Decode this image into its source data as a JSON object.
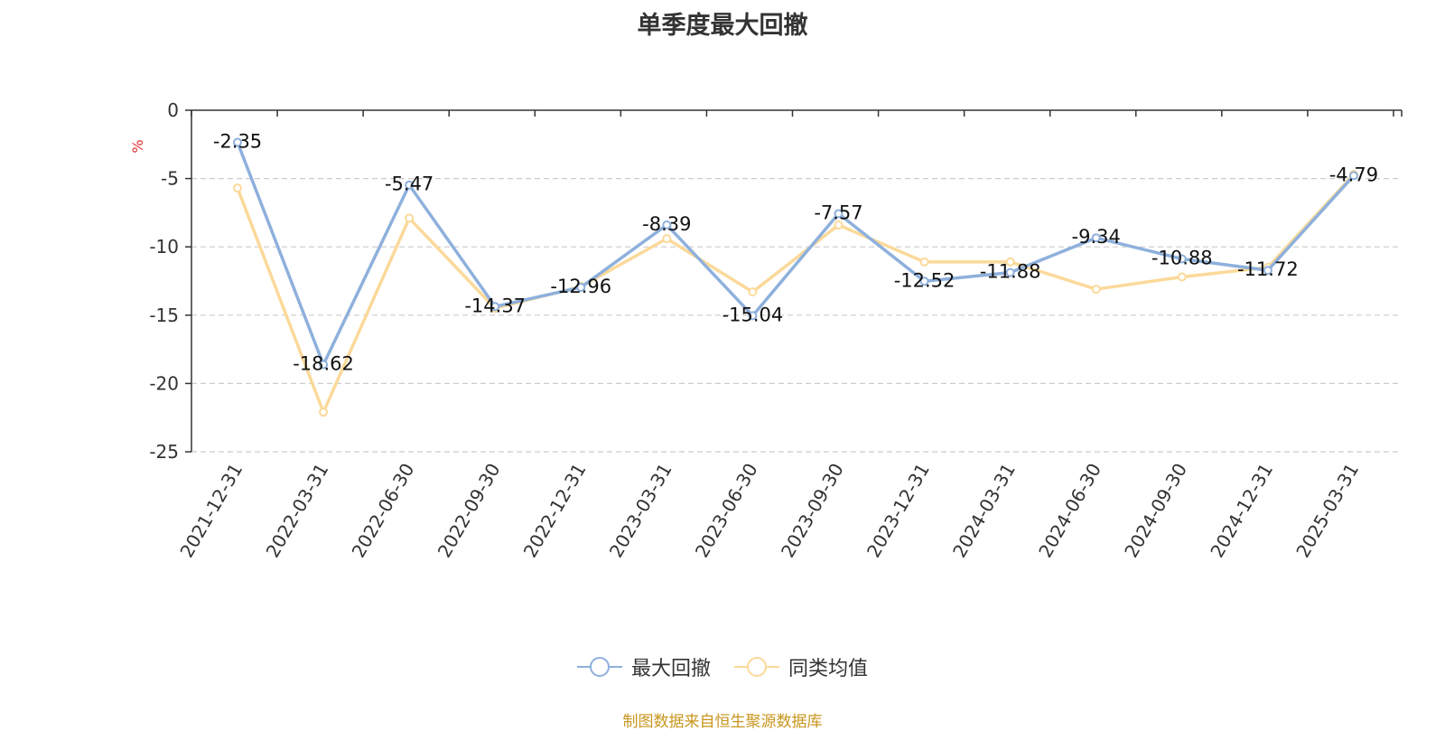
{
  "title": "单季度最大回撤",
  "chart_data": {
    "type": "line",
    "title": "单季度最大回撤",
    "ylabel": "%",
    "xlabel": "",
    "categories": [
      "2021-12-31",
      "2022-03-31",
      "2022-06-30",
      "2022-09-30",
      "2022-12-31",
      "2023-03-31",
      "2023-06-30",
      "2023-09-30",
      "2023-12-31",
      "2024-03-31",
      "2024-06-30",
      "2024-09-30",
      "2024-12-31",
      "2025-03-31"
    ],
    "ylim": [
      -25,
      0
    ],
    "yticks": [
      0,
      -5,
      -10,
      -15,
      -20,
      -25
    ],
    "ytick_labels": [
      "0",
      "-5",
      "-10",
      "-15",
      "-20",
      "-25"
    ],
    "grid": "horizontal dashed",
    "legend_position": "bottom",
    "series": [
      {
        "name": "最大回撤",
        "color": "#8eb0dc",
        "values": [
          -2.35,
          -18.62,
          -5.47,
          -14.37,
          -12.96,
          -8.39,
          -15.04,
          -7.57,
          -12.52,
          -11.88,
          -9.34,
          -10.88,
          -11.72,
          -4.79
        ],
        "labels": [
          "-2.35",
          "-18.62",
          "-5.47",
          "-14.37",
          "-12.96",
          "-8.39",
          "-15.04",
          "-7.57",
          "-12.52",
          "-11.88",
          "-9.34",
          "-10.88",
          "-11.72",
          "-4.79"
        ]
      },
      {
        "name": "同类均值",
        "color": "#fbd99a",
        "values": [
          -5.7,
          -22.1,
          -7.9,
          -14.5,
          -12.9,
          -9.4,
          -13.3,
          -8.4,
          -11.1,
          -11.1,
          -13.1,
          -12.2,
          -11.5,
          -4.7
        ]
      }
    ]
  },
  "source_note": "制图数据来自恒生聚源数据库"
}
